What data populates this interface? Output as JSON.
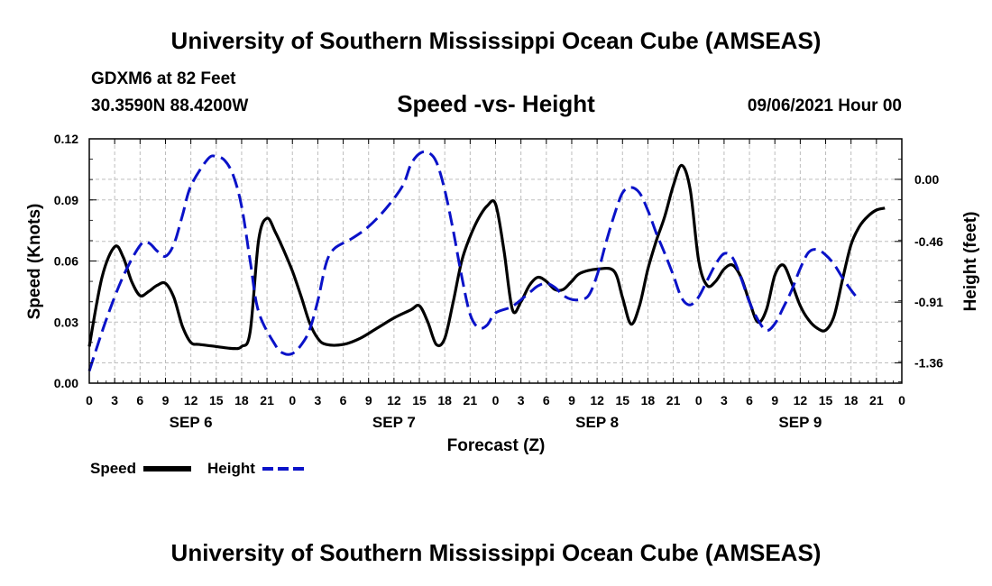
{
  "header": {
    "title": "University of Southern Mississippi Ocean Cube (AMSEAS)",
    "station": "GDXM6 at 82 Feet",
    "coords": "30.3590N  88.4200W",
    "subtitle": "Speed -vs- Height",
    "datetime": "09/06/2021 Hour 00"
  },
  "footer": {
    "title": "University of Southern Mississippi Ocean Cube (AMSEAS)"
  },
  "colors": {
    "speed": "#000000",
    "height": "#0a12c8",
    "grid": "#bdbdbd"
  },
  "chart_data": {
    "type": "line",
    "title": "Speed -vs- Height",
    "xlabel": "Forecast (Z)",
    "ylabel": "Speed (Knots)",
    "y2label": "Height (feet)",
    "xlim": [
      0,
      96
    ],
    "ylim": [
      0,
      0.12
    ],
    "y2lim": [
      -1.51,
      0.3
    ],
    "x_tick_labels": [
      "0",
      "3",
      "6",
      "9",
      "12",
      "15",
      "18",
      "21",
      "0",
      "3",
      "6",
      "9",
      "12",
      "15",
      "18",
      "21",
      "0",
      "3",
      "6",
      "9",
      "12",
      "15",
      "18",
      "21",
      "0",
      "3",
      "6",
      "9",
      "12",
      "15",
      "18",
      "21",
      "0"
    ],
    "y_ticks": [
      "0.00",
      "0.03",
      "0.06",
      "0.09",
      "0.12"
    ],
    "y2_ticks": [
      "0.00",
      "-0.46",
      "-0.91",
      "-1.36"
    ],
    "day_labels": [
      {
        "label": "SEP 6",
        "hour": 12
      },
      {
        "label": "SEP 7",
        "hour": 36
      },
      {
        "label": "SEP 8",
        "hour": 60
      },
      {
        "label": "SEP 9",
        "hour": 84
      }
    ],
    "grid": true,
    "legend_position": "bottom-left",
    "series": [
      {
        "name": "Speed",
        "axis": "left",
        "style": "solid",
        "points": [
          [
            0,
            0.018
          ],
          [
            1.5,
            0.052
          ],
          [
            3,
            0.067
          ],
          [
            4,
            0.062
          ],
          [
            5,
            0.05
          ],
          [
            6,
            0.043
          ],
          [
            7,
            0.045
          ],
          [
            8,
            0.048
          ],
          [
            9,
            0.049
          ],
          [
            10,
            0.042
          ],
          [
            11,
            0.028
          ],
          [
            12,
            0.02
          ],
          [
            13,
            0.019
          ],
          [
            15,
            0.018
          ],
          [
            17,
            0.017
          ],
          [
            18,
            0.018
          ],
          [
            19,
            0.025
          ],
          [
            20,
            0.07
          ],
          [
            21,
            0.081
          ],
          [
            22,
            0.074
          ],
          [
            23,
            0.065
          ],
          [
            24,
            0.055
          ],
          [
            25,
            0.043
          ],
          [
            26,
            0.03
          ],
          [
            27,
            0.022
          ],
          [
            28,
            0.019
          ],
          [
            30,
            0.019
          ],
          [
            32,
            0.022
          ],
          [
            34,
            0.027
          ],
          [
            36,
            0.032
          ],
          [
            38,
            0.036
          ],
          [
            39,
            0.038
          ],
          [
            40,
            0.03
          ],
          [
            41,
            0.019
          ],
          [
            42,
            0.022
          ],
          [
            43,
            0.04
          ],
          [
            44,
            0.06
          ],
          [
            45,
            0.072
          ],
          [
            46,
            0.081
          ],
          [
            47,
            0.087
          ],
          [
            48,
            0.088
          ],
          [
            49,
            0.065
          ],
          [
            50,
            0.036
          ],
          [
            51,
            0.04
          ],
          [
            52,
            0.048
          ],
          [
            53,
            0.052
          ],
          [
            54,
            0.05
          ],
          [
            55,
            0.046
          ],
          [
            56,
            0.046
          ],
          [
            57,
            0.05
          ],
          [
            58,
            0.054
          ],
          [
            60,
            0.056
          ],
          [
            62,
            0.055
          ],
          [
            63,
            0.042
          ],
          [
            64,
            0.029
          ],
          [
            65,
            0.038
          ],
          [
            66,
            0.056
          ],
          [
            67,
            0.07
          ],
          [
            68,
            0.082
          ],
          [
            69,
            0.097
          ],
          [
            70,
            0.107
          ],
          [
            71,
            0.095
          ],
          [
            72,
            0.06
          ],
          [
            73,
            0.048
          ],
          [
            74,
            0.05
          ],
          [
            75,
            0.056
          ],
          [
            76,
            0.058
          ],
          [
            77,
            0.052
          ],
          [
            78,
            0.04
          ],
          [
            79,
            0.03
          ],
          [
            80,
            0.036
          ],
          [
            81,
            0.053
          ],
          [
            82,
            0.058
          ],
          [
            83,
            0.049
          ],
          [
            84,
            0.038
          ],
          [
            85,
            0.031
          ],
          [
            86,
            0.027
          ],
          [
            87,
            0.026
          ],
          [
            88,
            0.033
          ],
          [
            89,
            0.051
          ],
          [
            90,
            0.068
          ],
          [
            91,
            0.077
          ],
          [
            92,
            0.082
          ],
          [
            93,
            0.085
          ],
          [
            94,
            0.086
          ]
        ]
      },
      {
        "name": "Height",
        "axis": "right",
        "style": "dashed",
        "points": [
          [
            0,
            -1.42
          ],
          [
            2,
            -1.04
          ],
          [
            4,
            -0.72
          ],
          [
            6,
            -0.49
          ],
          [
            7,
            -0.47
          ],
          [
            8,
            -0.53
          ],
          [
            9,
            -0.57
          ],
          [
            10,
            -0.48
          ],
          [
            11,
            -0.27
          ],
          [
            12,
            -0.05
          ],
          [
            14,
            0.15
          ],
          [
            15,
            0.17
          ],
          [
            16,
            0.14
          ],
          [
            17,
            0.03
          ],
          [
            18,
            -0.2
          ],
          [
            19,
            -0.6
          ],
          [
            20,
            -0.98
          ],
          [
            22,
            -1.23
          ],
          [
            23,
            -1.29
          ],
          [
            24,
            -1.29
          ],
          [
            25,
            -1.23
          ],
          [
            26,
            -1.12
          ],
          [
            27,
            -0.9
          ],
          [
            28,
            -0.62
          ],
          [
            29,
            -0.51
          ],
          [
            31,
            -0.44
          ],
          [
            33,
            -0.35
          ],
          [
            35,
            -0.22
          ],
          [
            37,
            -0.05
          ],
          [
            38,
            0.11
          ],
          [
            39,
            0.19
          ],
          [
            40,
            0.2
          ],
          [
            41,
            0.13
          ],
          [
            42,
            -0.08
          ],
          [
            43,
            -0.38
          ],
          [
            44,
            -0.72
          ],
          [
            45,
            -1.0
          ],
          [
            46,
            -1.1
          ],
          [
            47,
            -1.08
          ],
          [
            48,
            -0.99
          ],
          [
            50,
            -0.94
          ],
          [
            52,
            -0.84
          ],
          [
            53,
            -0.79
          ],
          [
            54,
            -0.77
          ],
          [
            55,
            -0.8
          ],
          [
            56,
            -0.86
          ],
          [
            57,
            -0.89
          ],
          [
            58,
            -0.89
          ],
          [
            59,
            -0.86
          ],
          [
            60,
            -0.71
          ],
          [
            61,
            -0.48
          ],
          [
            62,
            -0.27
          ],
          [
            63,
            -0.1
          ],
          [
            64,
            -0.06
          ],
          [
            65,
            -0.1
          ],
          [
            66,
            -0.23
          ],
          [
            67,
            -0.4
          ],
          [
            68,
            -0.55
          ],
          [
            69,
            -0.71
          ],
          [
            70,
            -0.88
          ],
          [
            71,
            -0.93
          ],
          [
            72,
            -0.87
          ],
          [
            73,
            -0.75
          ],
          [
            74,
            -0.63
          ],
          [
            75,
            -0.55
          ],
          [
            76,
            -0.58
          ],
          [
            77,
            -0.73
          ],
          [
            78,
            -0.91
          ],
          [
            79,
            -1.04
          ],
          [
            80,
            -1.12
          ],
          [
            81,
            -1.07
          ],
          [
            82,
            -0.95
          ],
          [
            83,
            -0.82
          ],
          [
            84,
            -0.66
          ],
          [
            85,
            -0.54
          ],
          [
            86,
            -0.52
          ],
          [
            87,
            -0.56
          ],
          [
            88,
            -0.63
          ],
          [
            89,
            -0.73
          ],
          [
            90,
            -0.82
          ],
          [
            91,
            -0.9
          ]
        ]
      }
    ]
  }
}
